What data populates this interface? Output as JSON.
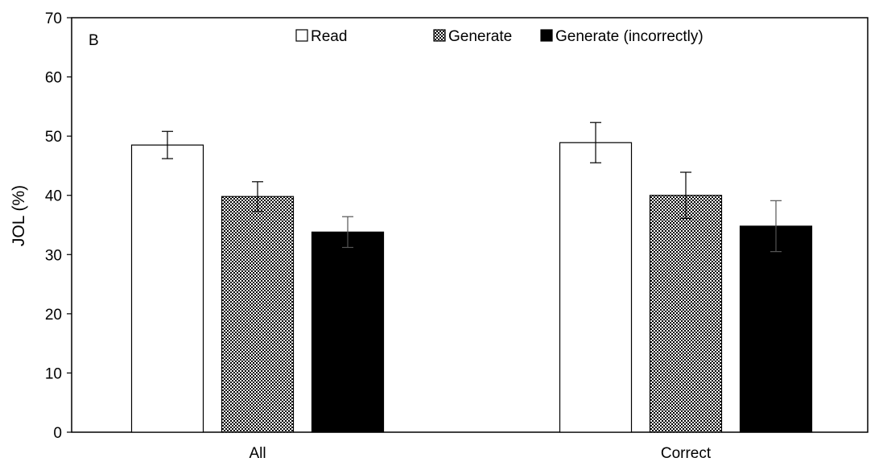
{
  "chart_data": {
    "type": "bar",
    "panel_label": "B",
    "ylabel": "JOL (%)",
    "xlabel": "",
    "ylim": [
      0,
      70
    ],
    "yticks": [
      0,
      10,
      20,
      30,
      40,
      50,
      60,
      70
    ],
    "grid": false,
    "legend_position": "top",
    "categories": [
      "All",
      "Correct"
    ],
    "series": [
      {
        "name": "Read",
        "fill": "white",
        "color": "#ffffff",
        "values": [
          48.5,
          48.9
        ],
        "error": [
          2.3,
          3.4
        ]
      },
      {
        "name": "Generate",
        "fill": "checker",
        "color": "#8a8a8a",
        "values": [
          39.8,
          40.0
        ],
        "error": [
          2.5,
          3.9
        ]
      },
      {
        "name": "Generate (incorrectly)",
        "fill": "black",
        "color": "#000000",
        "values": [
          33.8,
          34.8
        ],
        "error": [
          2.6,
          4.3
        ]
      }
    ]
  }
}
